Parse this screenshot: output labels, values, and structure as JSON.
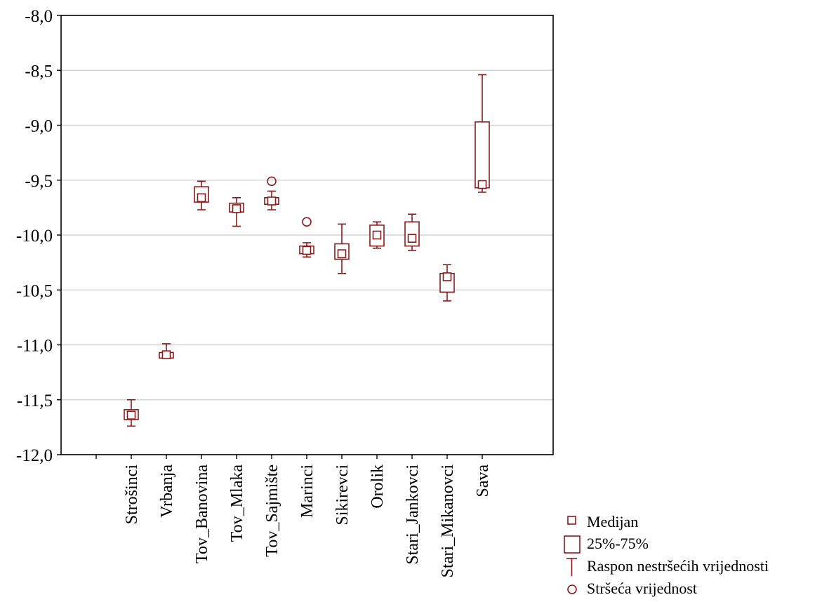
{
  "chart_data": {
    "type": "box",
    "title": "",
    "xlabel": "",
    "ylabel": "",
    "ylim": [
      -12.0,
      -8.0
    ],
    "yticks": [
      "-8,0",
      "-8,5",
      "-9,0",
      "-9,5",
      "-10,0",
      "-10,5",
      "-11,0",
      "-11,5",
      "-12,0"
    ],
    "ytick_values": [
      -8.0,
      -8.5,
      -9.0,
      -9.5,
      -10.0,
      -10.5,
      -11.0,
      -11.5,
      -12.0
    ],
    "grid": "horizontal",
    "color": "#8b1a1a",
    "categories": [
      "Strošinci",
      "Vrbanja",
      "Tov_Banovina",
      "Tov_Mlaka",
      "Tov_Sajmište",
      "Marinci",
      "Sikirevci",
      "Orolik",
      "Stari_Jankovci",
      "Stari_Mikanovci",
      "Sava"
    ],
    "boxes": [
      {
        "median": -11.64,
        "q1": -11.68,
        "q3": -11.59,
        "whisker_low": -11.74,
        "whisker_high": -11.5,
        "outliers": []
      },
      {
        "median": -11.09,
        "q1": -11.12,
        "q3": -11.07,
        "whisker_low": -11.12,
        "whisker_high": -10.99,
        "outliers": []
      },
      {
        "median": -9.66,
        "q1": -9.7,
        "q3": -9.56,
        "whisker_low": -9.77,
        "whisker_high": -9.51,
        "outliers": []
      },
      {
        "median": -9.76,
        "q1": -9.79,
        "q3": -9.71,
        "whisker_low": -9.92,
        "whisker_high": -9.66,
        "outliers": []
      },
      {
        "median": -9.69,
        "q1": -9.72,
        "q3": -9.66,
        "whisker_low": -9.77,
        "whisker_high": -9.6,
        "outliers": [
          -9.51
        ]
      },
      {
        "median": -10.14,
        "q1": -10.17,
        "q3": -10.1,
        "whisker_low": -10.2,
        "whisker_high": -10.07,
        "outliers": [
          -9.88
        ]
      },
      {
        "median": -10.17,
        "q1": -10.22,
        "q3": -10.08,
        "whisker_low": -10.35,
        "whisker_high": -9.9,
        "outliers": []
      },
      {
        "median": -10.0,
        "q1": -10.1,
        "q3": -9.91,
        "whisker_low": -10.12,
        "whisker_high": -9.88,
        "outliers": []
      },
      {
        "median": -10.03,
        "q1": -10.1,
        "q3": -9.88,
        "whisker_low": -10.14,
        "whisker_high": -9.81,
        "outliers": []
      },
      {
        "median": -10.38,
        "q1": -10.52,
        "q3": -10.35,
        "whisker_low": -10.6,
        "whisker_high": -10.27,
        "outliers": []
      },
      {
        "median": -9.54,
        "q1": -9.57,
        "q3": -8.97,
        "whisker_low": -9.61,
        "whisker_high": -8.54,
        "outliers": []
      }
    ],
    "legend": {
      "position": "bottom-right",
      "entries": [
        {
          "symbol": "median",
          "label": "Medijan"
        },
        {
          "symbol": "box",
          "label": "25%-75%"
        },
        {
          "symbol": "whisker",
          "label": "Raspon nestršećih vrijednosti"
        },
        {
          "symbol": "outlier",
          "label": "Stršeća vrijednost"
        }
      ]
    }
  }
}
